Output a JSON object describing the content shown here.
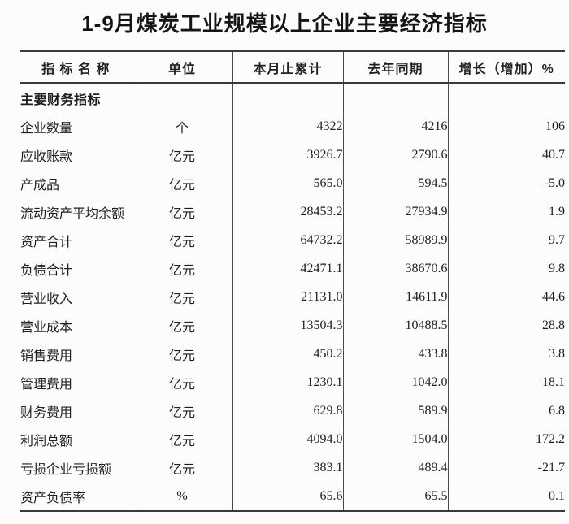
{
  "page_title": "1-9月煤炭工业规模以上企业主要经济指标",
  "colors": {
    "background": "#fcfcfc",
    "text": "#1e1e1e",
    "border": "#3a3a3a"
  },
  "chart_data": {
    "type": "table",
    "title": "1-9月煤炭工业规模以上企业主要经济指标",
    "columns": [
      "指 标 名 称",
      "单位",
      "本月止累计",
      "去年同期",
      "增长（增加）%"
    ],
    "section_header": "主要财务指标",
    "rows": [
      {
        "name": "主要财务指标",
        "unit": "",
        "current": "",
        "last_year": "",
        "growth": "",
        "section": true
      },
      {
        "name": "企业数量",
        "unit": "个",
        "current": "4322",
        "last_year": "4216",
        "growth": "106"
      },
      {
        "name": "应收账款",
        "unit": "亿元",
        "current": "3926.7",
        "last_year": "2790.6",
        "growth": "40.7"
      },
      {
        "name": "产成品",
        "unit": "亿元",
        "current": "565.0",
        "last_year": "594.5",
        "growth": "-5.0"
      },
      {
        "name": "流动资产平均余额",
        "unit": "亿元",
        "current": "28453.2",
        "last_year": "27934.9",
        "growth": "1.9"
      },
      {
        "name": "资产合计",
        "unit": "亿元",
        "current": "64732.2",
        "last_year": "58989.9",
        "growth": "9.7"
      },
      {
        "name": "负债合计",
        "unit": "亿元",
        "current": "42471.1",
        "last_year": "38670.6",
        "growth": "9.8"
      },
      {
        "name": "营业收入",
        "unit": "亿元",
        "current": "21131.0",
        "last_year": "14611.9",
        "growth": "44.6"
      },
      {
        "name": "营业成本",
        "unit": "亿元",
        "current": "13504.3",
        "last_year": "10488.5",
        "growth": "28.8"
      },
      {
        "name": "销售费用",
        "unit": "亿元",
        "current": "450.2",
        "last_year": "433.8",
        "growth": "3.8"
      },
      {
        "name": "管理费用",
        "unit": "亿元",
        "current": "1230.1",
        "last_year": "1042.0",
        "growth": "18.1"
      },
      {
        "name": "财务费用",
        "unit": "亿元",
        "current": "629.8",
        "last_year": "589.9",
        "growth": "6.8"
      },
      {
        "name": "利润总额",
        "unit": "亿元",
        "current": "4094.0",
        "last_year": "1504.0",
        "growth": "172.2"
      },
      {
        "name": "亏损企业亏损额",
        "unit": "亿元",
        "current": "383.1",
        "last_year": "489.4",
        "growth": "-21.7"
      },
      {
        "name": "资产负债率",
        "unit": "%",
        "current": "65.6",
        "last_year": "65.5",
        "growth": "0.1"
      }
    ]
  }
}
